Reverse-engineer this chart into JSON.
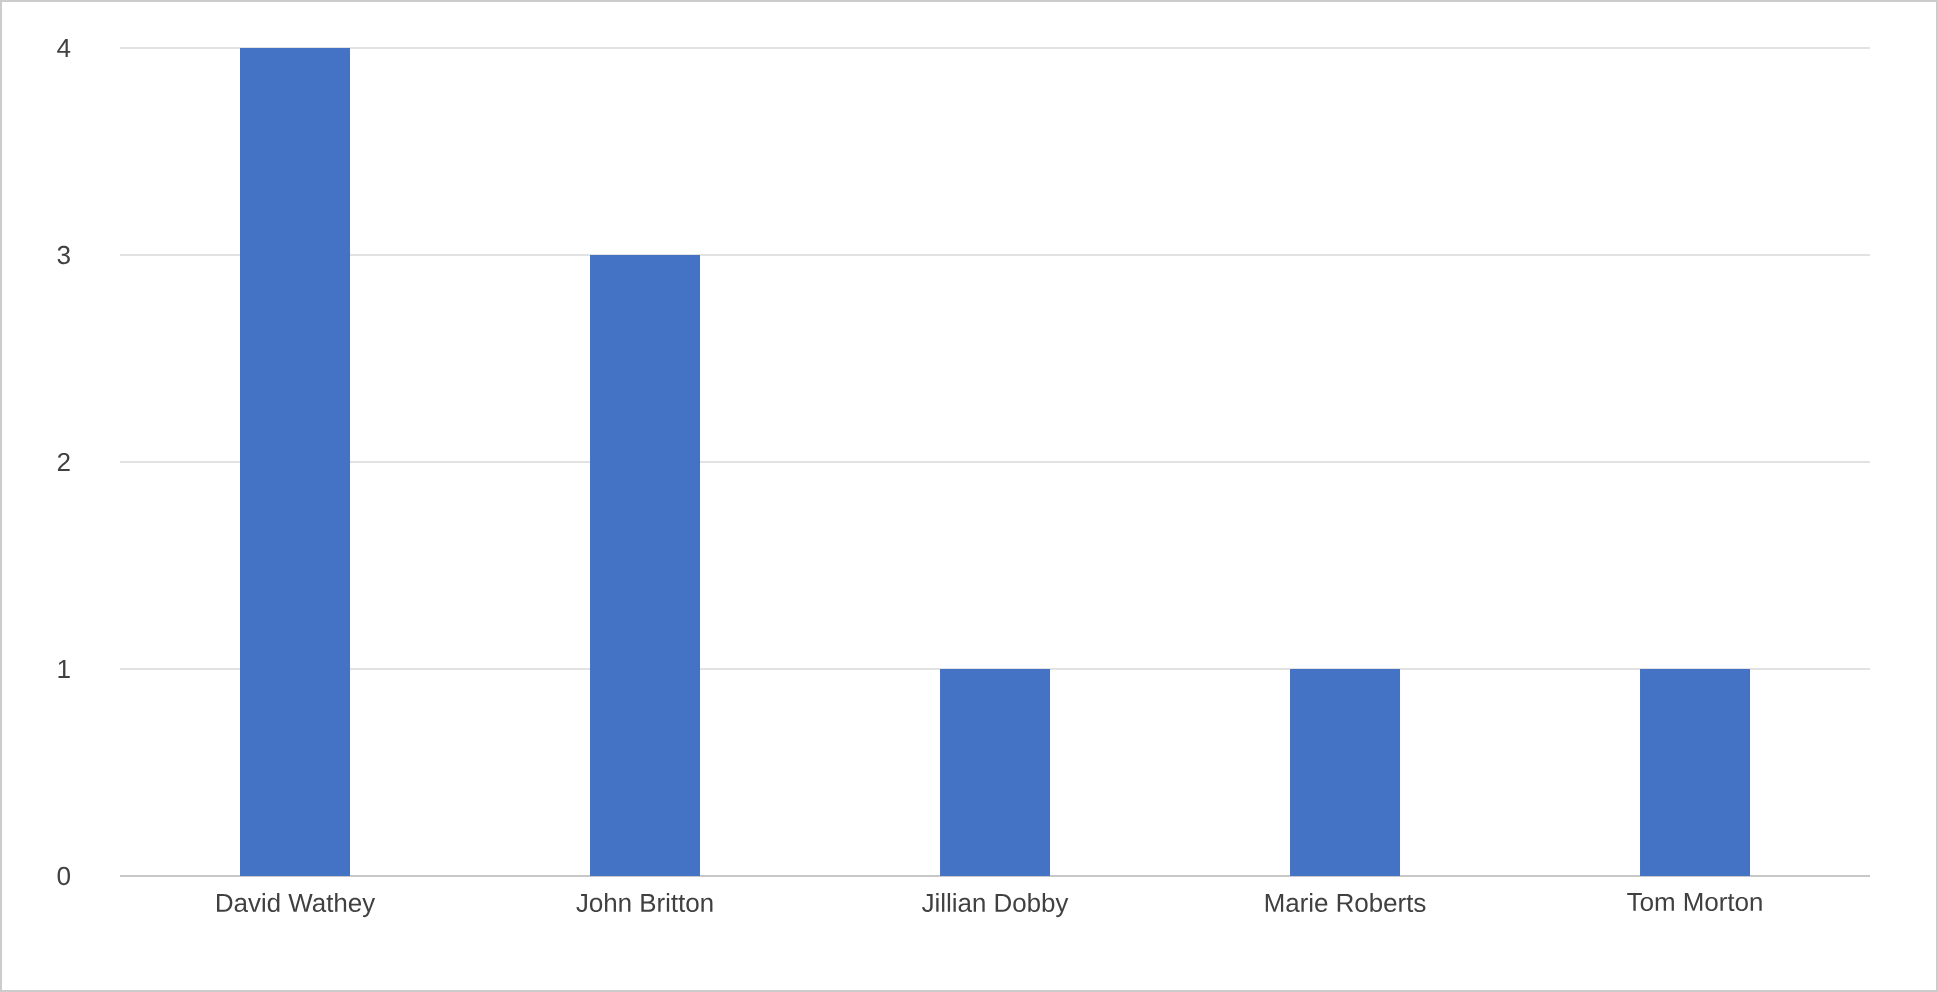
{
  "chart_data": {
    "type": "bar",
    "categories": [
      "David Wathey",
      "John Britton",
      "Jillian Dobby",
      "Marie Roberts",
      "Tom Morton"
    ],
    "values": [
      4,
      3,
      1,
      1,
      1
    ],
    "color": "#4472c4",
    "ylim": [
      0,
      4
    ],
    "yticks": [
      0,
      1,
      2,
      3,
      4
    ],
    "grid": "y"
  }
}
